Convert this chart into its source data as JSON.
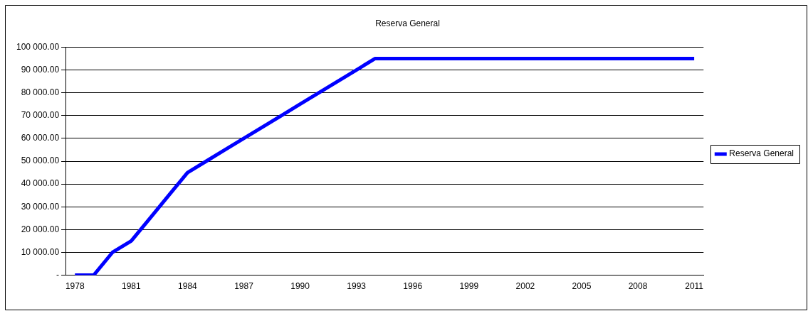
{
  "chart_data": {
    "type": "line",
    "title": "Reserva General",
    "categories": [
      "1978",
      null,
      null,
      "1981",
      null,
      null,
      "1984",
      null,
      null,
      "1987",
      null,
      null,
      "1990",
      null,
      null,
      "1993",
      null,
      null,
      "1996",
      null,
      null,
      "1999",
      null,
      null,
      "2002",
      null,
      null,
      "2005",
      null,
      null,
      "2008",
      null,
      null,
      "2011"
    ],
    "series": [
      {
        "name": "Reserva General",
        "color": "#0000ff",
        "values": [
          0,
          0,
          10000,
          15000,
          25000,
          35000,
          45000,
          50000,
          55000,
          60000,
          65000,
          70000,
          75000,
          80000,
          85000,
          90000,
          95000,
          95000,
          95000,
          95000,
          95000,
          95000,
          95000,
          95000,
          95000,
          95000,
          95000,
          95000,
          95000,
          95000,
          95000,
          95000,
          95000,
          95000
        ]
      }
    ],
    "ylim": [
      0,
      100000
    ],
    "yticks": [
      {
        "value": 0,
        "label": "-"
      },
      {
        "value": 10000,
        "label": "10 000.00"
      },
      {
        "value": 20000,
        "label": "20 000.00"
      },
      {
        "value": 30000,
        "label": "30 000.00"
      },
      {
        "value": 40000,
        "label": "40 000.00"
      },
      {
        "value": 50000,
        "label": "50 000.00"
      },
      {
        "value": 60000,
        "label": "60 000.00"
      },
      {
        "value": 70000,
        "label": "70 000.00"
      },
      {
        "value": 80000,
        "label": "80 000.00"
      },
      {
        "value": 90000,
        "label": "90 000.00"
      },
      {
        "value": 100000,
        "label": "100 000.00"
      }
    ],
    "grid": "y",
    "legend": "right",
    "marker": "none",
    "line_style": "solid"
  }
}
